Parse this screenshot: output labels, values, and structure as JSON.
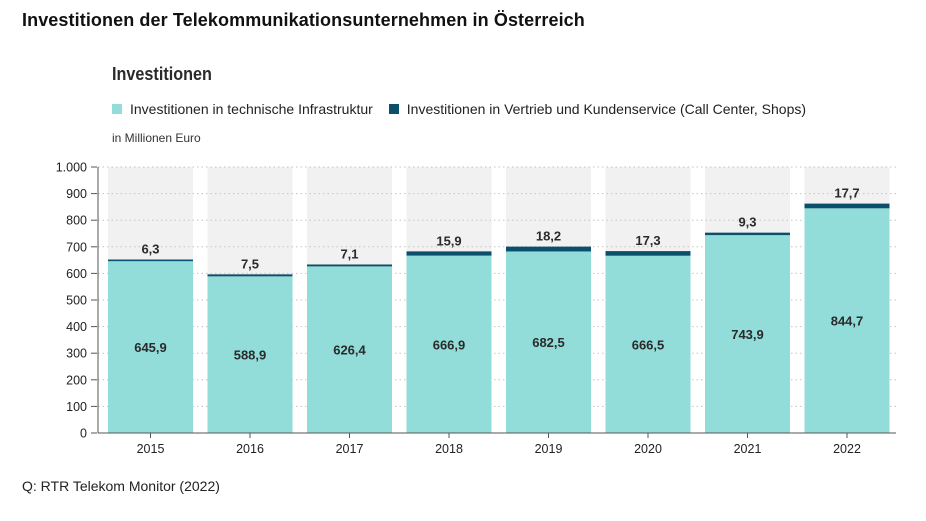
{
  "page_title": "Investitionen der Telekommunikationsunternehmen in Österreich",
  "source_note": "Q: RTR Telekom Monitor (2022)",
  "colors": {
    "infrastructure": "#92ddd9",
    "sales": "#0b4f6c",
    "column_band": "#f1f1f1",
    "grid": "#c4c4c4"
  },
  "chart_data": {
    "type": "bar",
    "stacked": true,
    "title": "Investitionen",
    "unit_label": "in Millionen Euro",
    "categories": [
      "2015",
      "2016",
      "2017",
      "2018",
      "2019",
      "2020",
      "2021",
      "2022"
    ],
    "series": [
      {
        "name": "Investitionen in technische Infrastruktur",
        "values": [
          645.9,
          588.9,
          626.4,
          666.9,
          682.5,
          666.5,
          743.9,
          844.7
        ],
        "labels": [
          "645,9",
          "588,9",
          "626,4",
          "666,9",
          "682,5",
          "666,5",
          "743,9",
          "844,7"
        ]
      },
      {
        "name": "Investitionen in Vertrieb und Kundenservice (Call Center, Shops)",
        "values": [
          6.3,
          7.5,
          7.1,
          15.9,
          18.2,
          17.3,
          9.3,
          17.7
        ],
        "labels": [
          "6,3",
          "7,5",
          "7,1",
          "15,9",
          "18,2",
          "17,3",
          "9,3",
          "17,7"
        ]
      }
    ],
    "ylim": [
      0,
      1000
    ],
    "yticks": [
      0,
      100,
      200,
      300,
      400,
      500,
      600,
      700,
      800,
      900,
      1000
    ],
    "ytick_labels": [
      "0",
      "100",
      "200",
      "300",
      "400",
      "500",
      "600",
      "700",
      "800",
      "900",
      "1.000"
    ],
    "xlabel": "",
    "ylabel": "",
    "grid": true,
    "legend_position": "top-left"
  }
}
